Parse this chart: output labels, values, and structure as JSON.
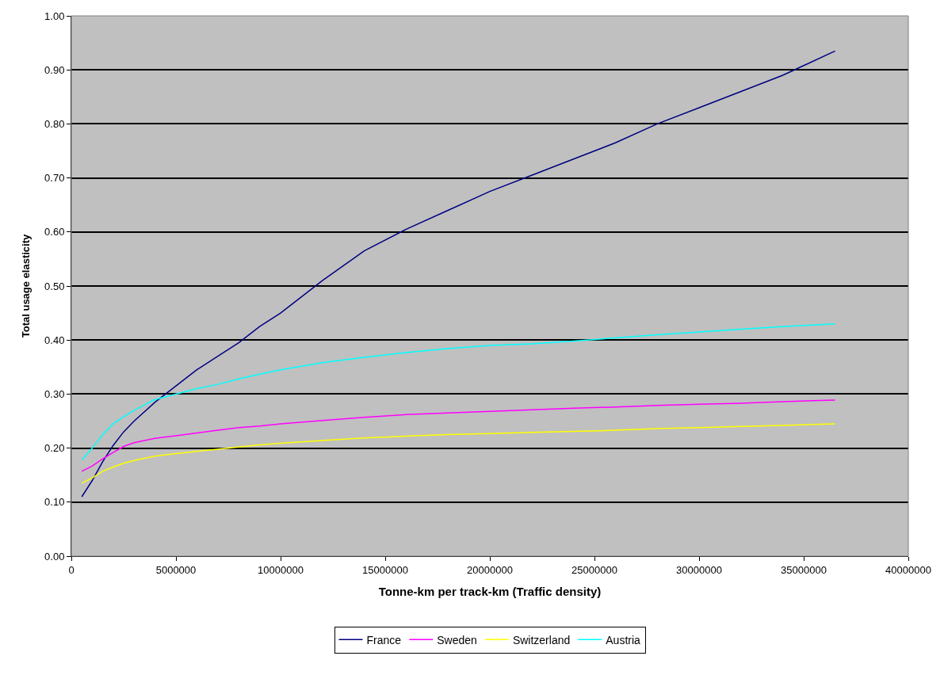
{
  "chart_data": {
    "type": "line",
    "xlabel": "Tonne-km per track-km (Traffic density)",
    "ylabel": "Total usage elasticity",
    "x": [
      500000,
      1000000,
      1500000,
      2000000,
      2500000,
      3000000,
      4000000,
      5000000,
      6000000,
      7000000,
      8000000,
      9000000,
      10000000,
      12000000,
      14000000,
      16000000,
      18000000,
      20000000,
      22000000,
      24000000,
      26000000,
      28000000,
      30000000,
      32000000,
      34000000,
      36500000
    ],
    "series": [
      {
        "name": "France",
        "color": "#000080",
        "values": [
          0.11,
          0.14,
          0.175,
          0.205,
          0.23,
          0.25,
          0.285,
          0.315,
          0.345,
          0.37,
          0.395,
          0.425,
          0.45,
          0.51,
          0.565,
          0.605,
          0.64,
          0.675,
          0.705,
          0.735,
          0.765,
          0.8,
          0.83,
          0.86,
          0.89,
          0.935
        ]
      },
      {
        "name": "Sweden",
        "color": "#ff00ff",
        "values": [
          0.157,
          0.167,
          0.18,
          0.192,
          0.203,
          0.21,
          0.218,
          0.223,
          0.228,
          0.233,
          0.238,
          0.241,
          0.245,
          0.251,
          0.257,
          0.262,
          0.265,
          0.268,
          0.271,
          0.274,
          0.276,
          0.279,
          0.281,
          0.283,
          0.286,
          0.289
        ]
      },
      {
        "name": "Switzerland",
        "color": "#ffff00",
        "values": [
          0.135,
          0.145,
          0.157,
          0.165,
          0.172,
          0.177,
          0.185,
          0.19,
          0.194,
          0.198,
          0.202,
          0.206,
          0.209,
          0.214,
          0.219,
          0.222,
          0.225,
          0.227,
          0.229,
          0.231,
          0.233,
          0.236,
          0.238,
          0.24,
          0.242,
          0.245
        ]
      },
      {
        "name": "Austria",
        "color": "#00ffff",
        "values": [
          0.178,
          0.2,
          0.225,
          0.245,
          0.258,
          0.27,
          0.29,
          0.3,
          0.31,
          0.318,
          0.328,
          0.337,
          0.345,
          0.358,
          0.368,
          0.377,
          0.384,
          0.39,
          0.393,
          0.398,
          0.404,
          0.41,
          0.415,
          0.42,
          0.425,
          0.43
        ]
      }
    ],
    "xlim": [
      0,
      40000000
    ],
    "xticks": [
      0,
      5000000,
      10000000,
      15000000,
      20000000,
      25000000,
      30000000,
      35000000,
      40000000
    ],
    "ylim": [
      0,
      1
    ],
    "yticks": [
      {
        "value": 0,
        "label": "0.00"
      },
      {
        "value": 0.1,
        "label": "0.10"
      },
      {
        "value": 0.2,
        "label": "0.20"
      },
      {
        "value": 0.3,
        "label": "0.30"
      },
      {
        "value": 0.4,
        "label": "0.40"
      },
      {
        "value": 0.5,
        "label": "0.50"
      },
      {
        "value": 0.6,
        "label": "0.60"
      },
      {
        "value": 0.7,
        "label": "0.70"
      },
      {
        "value": 0.8,
        "label": "0.80"
      },
      {
        "value": 0.9,
        "label": "0.90"
      },
      {
        "value": 1,
        "label": "1.00"
      }
    ],
    "grid": "y",
    "legend": "bottom",
    "marker": "none",
    "line_style": "solid"
  }
}
